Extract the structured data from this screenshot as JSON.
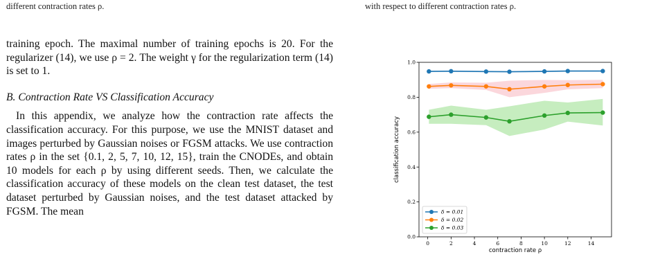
{
  "captions": {
    "left_tail": "different contraction rates ρ.",
    "right_tail": "with respect to different contraction rates ρ."
  },
  "left_column": {
    "para1": "training epoch. The maximal number of training epochs is 20. For the regularizer (14), we use ρ = 2. The weight γ for the regularization term (14) is set to 1.",
    "heading": "B. Contraction Rate VS Classification Accuracy",
    "para2": "In this appendix, we analyze how the contraction rate affects the classification accuracy. For this purpose, we use the MNIST dataset and images perturbed by Gaussian noises or FGSM attacks. We use contraction rates ρ in the set {0.1, 2, 5, 7, 10, 12, 15}, train the CNODEs, and obtain 10 models for each ρ by using different seeds. Then, we calculate the classification accuracy of these models on the clean test dataset, the test dataset perturbed by Gaussian noises, and the test dataset attacked by FGSM. The mean"
  },
  "chart_data": {
    "type": "line",
    "xlabel": "contraction rate ρ",
    "ylabel": "classification accuracy",
    "xlim": [
      -0.75,
      15.75
    ],
    "ylim": [
      0.0,
      1.0
    ],
    "xticks": [
      0,
      2,
      4,
      6,
      8,
      10,
      12,
      14
    ],
    "yticks": [
      0.0,
      0.2,
      0.4,
      0.6,
      0.8,
      1.0
    ],
    "ytick_labels": [
      "0.0",
      "0.2",
      "0.4",
      "0.6",
      "0.8",
      "1.0"
    ],
    "x": [
      0.1,
      2,
      5,
      7,
      10,
      12,
      15
    ],
    "legend_position": "lower-left",
    "grid": false,
    "series": [
      {
        "name": "δ = 0.01",
        "color": "#1f77b4",
        "values": [
          0.948,
          0.949,
          0.947,
          0.946,
          0.948,
          0.95,
          0.95
        ],
        "lower": [
          0.944,
          0.945,
          0.943,
          0.942,
          0.944,
          0.946,
          0.946
        ],
        "upper": [
          0.952,
          0.953,
          0.951,
          0.95,
          0.952,
          0.954,
          0.954
        ]
      },
      {
        "name": "δ = 0.02",
        "color": "#ff7f0e",
        "values": [
          0.862,
          0.868,
          0.862,
          0.846,
          0.862,
          0.87,
          0.875
        ],
        "lower": [
          0.848,
          0.852,
          0.842,
          0.8,
          0.825,
          0.845,
          0.852
        ],
        "upper": [
          0.876,
          0.885,
          0.883,
          0.895,
          0.899,
          0.898,
          0.9
        ]
      },
      {
        "name": "δ = 0.03",
        "color": "#2ca02c",
        "values": [
          0.688,
          0.7,
          0.684,
          0.662,
          0.695,
          0.71,
          0.712
        ],
        "lower": [
          0.648,
          0.648,
          0.64,
          0.578,
          0.615,
          0.66,
          0.638
        ],
        "upper": [
          0.728,
          0.752,
          0.728,
          0.748,
          0.78,
          0.77,
          0.79
        ]
      }
    ],
    "band_colors": [
      "#aec7e8",
      "#f8b6c0",
      "#98df8a"
    ]
  }
}
